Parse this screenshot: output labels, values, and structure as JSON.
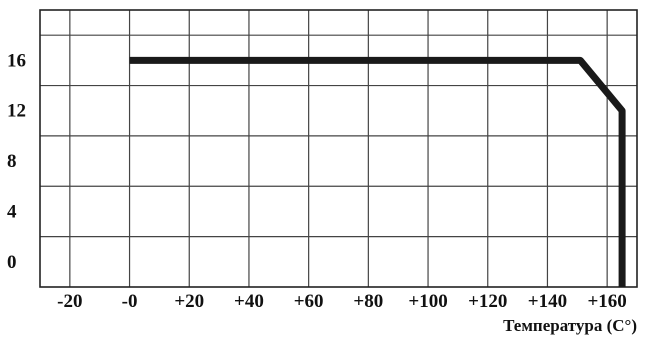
{
  "chart_data": {
    "type": "line",
    "title": "",
    "xlabel": "Температура (С°)",
    "ylabel": "",
    "x_ticks": [
      "-20",
      "-0",
      "+20",
      "+40",
      "+60",
      "+80",
      "+100",
      "+120",
      "+140",
      "+160"
    ],
    "y_ticks": [
      "0",
      "4",
      "8",
      "12",
      "16"
    ],
    "xlim": [
      -40,
      160
    ],
    "ylim": [
      -2,
      20
    ],
    "grid": true,
    "series": [
      {
        "x": [
          -10,
          141,
          155,
          155
        ],
        "y": [
          16,
          16,
          12,
          -2
        ]
      }
    ],
    "colors": {
      "line": "#1a1a1a",
      "grid": "#444444",
      "frame": "#222222",
      "text": "#111111"
    }
  }
}
